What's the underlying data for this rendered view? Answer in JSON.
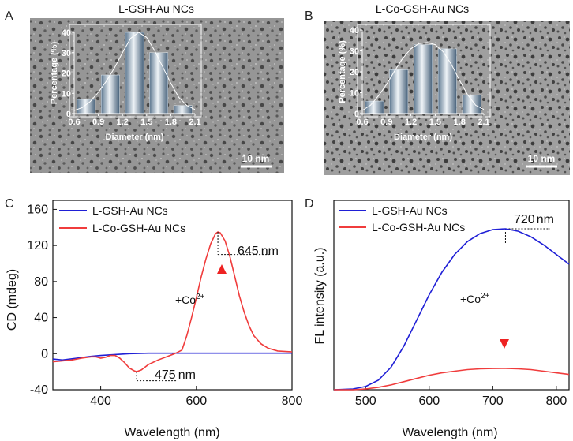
{
  "panels": {
    "A": {
      "letter": "A",
      "title": "L-GSH-Au NCs",
      "scale_bar_label": "10 nm",
      "histogram": {
        "type": "bar",
        "xlabel": "Diameter (nm)",
        "ylabel": "Percentage (%)",
        "xlim": [
          0.6,
          2.1
        ],
        "ylim": [
          0,
          40
        ],
        "xticks": [
          "0.6",
          "0.9",
          "1.2",
          "1.5",
          "1.8",
          "2.1"
        ],
        "yticks": [
          "0",
          "10",
          "20",
          "30",
          "40"
        ],
        "bin_centers": [
          0.75,
          1.05,
          1.35,
          1.65,
          1.95
        ],
        "values": [
          7,
          19,
          40,
          30,
          4
        ],
        "fit_curve": [
          [
            0.6,
            1.5
          ],
          [
            0.7,
            3
          ],
          [
            0.8,
            6
          ],
          [
            0.9,
            10.5
          ],
          [
            1.0,
            16
          ],
          [
            1.1,
            22.5
          ],
          [
            1.2,
            30
          ],
          [
            1.3,
            37
          ],
          [
            1.4,
            40
          ],
          [
            1.5,
            37.5
          ],
          [
            1.6,
            31
          ],
          [
            1.7,
            23
          ],
          [
            1.8,
            15
          ],
          [
            1.9,
            8
          ],
          [
            2.0,
            4
          ],
          [
            2.1,
            2
          ]
        ]
      }
    },
    "B": {
      "letter": "B",
      "title": "L-Co-GSH-Au NCs",
      "scale_bar_label": "10 nm",
      "histogram": {
        "type": "bar",
        "xlabel": "Diameter (nm)",
        "ylabel": "Percentage (%)",
        "xlim": [
          0.6,
          2.1
        ],
        "ylim": [
          0,
          40
        ],
        "xticks": [
          "0.6",
          "0.9",
          "1.2",
          "1.5",
          "1.8",
          "2.1"
        ],
        "yticks": [
          "0",
          "10",
          "20",
          "30",
          "40"
        ],
        "bin_centers": [
          0.75,
          1.05,
          1.35,
          1.65,
          1.95
        ],
        "values": [
          6,
          21,
          33,
          31,
          9
        ],
        "fit_curve": [
          [
            0.6,
            1.5
          ],
          [
            0.7,
            4
          ],
          [
            0.8,
            8.5
          ],
          [
            0.9,
            14
          ],
          [
            1.0,
            20.5
          ],
          [
            1.1,
            26.5
          ],
          [
            1.2,
            31
          ],
          [
            1.3,
            33.5
          ],
          [
            1.4,
            34
          ],
          [
            1.5,
            33
          ],
          [
            1.6,
            29.5
          ],
          [
            1.7,
            23.5
          ],
          [
            1.8,
            16
          ],
          [
            1.9,
            9
          ],
          [
            2.0,
            4
          ],
          [
            2.1,
            2
          ]
        ]
      }
    }
  },
  "chart_data": [
    {
      "panel": "C",
      "type": "line",
      "letter": "C",
      "xlabel": "Wavelength (nm)",
      "ylabel": "CD (mdeg)",
      "xlim": [
        300,
        800
      ],
      "ylim": [
        -40,
        170
      ],
      "xticks": [
        "400",
        "600",
        "800"
      ],
      "yticks": [
        "-40",
        "0",
        "40",
        "80",
        "120",
        "160"
      ],
      "series": [
        {
          "name": "L-GSH-Au NCs",
          "color": "#1f1fd6",
          "points": [
            [
              300,
              -6
            ],
            [
              320,
              -7
            ],
            [
              350,
              -5
            ],
            [
              380,
              -3
            ],
            [
              400,
              -2
            ],
            [
              430,
              -1
            ],
            [
              460,
              0
            ],
            [
              500,
              0.5
            ],
            [
              550,
              0.5
            ],
            [
              600,
              0.5
            ],
            [
              650,
              0.5
            ],
            [
              700,
              0.5
            ],
            [
              750,
              0.5
            ],
            [
              800,
              0.5
            ]
          ]
        },
        {
          "name": "L-Co-GSH-Au NCs",
          "color": "#f03c3c",
          "points": [
            [
              300,
              -9
            ],
            [
              320,
              -8
            ],
            [
              340,
              -7
            ],
            [
              360,
              -5
            ],
            [
              380,
              -3.5
            ],
            [
              390,
              -3.5
            ],
            [
              400,
              -5
            ],
            [
              410,
              -4
            ],
            [
              420,
              -2
            ],
            [
              430,
              -2
            ],
            [
              440,
              -5
            ],
            [
              450,
              -10
            ],
            [
              460,
              -16
            ],
            [
              470,
              -19
            ],
            [
              475,
              -20
            ],
            [
              485,
              -18
            ],
            [
              500,
              -12
            ],
            [
              520,
              -7
            ],
            [
              540,
              -3
            ],
            [
              555,
              0
            ],
            [
              570,
              4
            ],
            [
              580,
              20
            ],
            [
              590,
              40
            ],
            [
              600,
              62
            ],
            [
              610,
              85
            ],
            [
              620,
              105
            ],
            [
              630,
              122
            ],
            [
              640,
              133
            ],
            [
              645,
              135
            ],
            [
              650,
              134
            ],
            [
              660,
              125
            ],
            [
              670,
              108
            ],
            [
              680,
              86
            ],
            [
              690,
              64
            ],
            [
              700,
              46
            ],
            [
              710,
              31
            ],
            [
              720,
              20
            ],
            [
              735,
              11
            ],
            [
              750,
              6
            ],
            [
              770,
              3
            ],
            [
              800,
              2
            ]
          ]
        }
      ],
      "annotations": {
        "peak_label": "645",
        "dip_label": "475",
        "unit": "nm",
        "arrow_label": "+Co",
        "superscript": "2+"
      }
    },
    {
      "panel": "D",
      "type": "line",
      "letter": "D",
      "xlabel": "Wavelength (nm)",
      "ylabel": "FL intensity (a.u.)",
      "xlim": [
        450,
        820
      ],
      "ylim": [
        0,
        1
      ],
      "xticks": [
        "500",
        "600",
        "700",
        "800"
      ],
      "series": [
        {
          "name": "L-GSH-Au NCs",
          "color": "#1f1fd6",
          "points": [
            [
              450,
              0
            ],
            [
              480,
              0.005
            ],
            [
              500,
              0.02
            ],
            [
              520,
              0.06
            ],
            [
              540,
              0.14
            ],
            [
              560,
              0.27
            ],
            [
              580,
              0.43
            ],
            [
              600,
              0.59
            ],
            [
              620,
              0.73
            ],
            [
              640,
              0.84
            ],
            [
              660,
              0.92
            ],
            [
              680,
              0.97
            ],
            [
              700,
              0.995
            ],
            [
              720,
              1
            ],
            [
              740,
              0.985
            ],
            [
              760,
              0.95
            ],
            [
              780,
              0.9
            ],
            [
              800,
              0.84
            ],
            [
              820,
              0.78
            ]
          ]
        },
        {
          "name": "L-Co-GSH-Au NCs",
          "color": "#f03c3c",
          "points": [
            [
              450,
              0
            ],
            [
              480,
              0
            ],
            [
              500,
              0.005
            ],
            [
              520,
              0.015
            ],
            [
              540,
              0.03
            ],
            [
              560,
              0.05
            ],
            [
              580,
              0.07
            ],
            [
              600,
              0.09
            ],
            [
              620,
              0.105
            ],
            [
              640,
              0.115
            ],
            [
              660,
              0.125
            ],
            [
              680,
              0.13
            ],
            [
              700,
              0.132
            ],
            [
              720,
              0.133
            ],
            [
              740,
              0.13
            ],
            [
              760,
              0.125
            ],
            [
              780,
              0.115
            ],
            [
              800,
              0.105
            ],
            [
              820,
              0.095
            ]
          ]
        }
      ],
      "annotations": {
        "peak_label": "720",
        "unit": "nm",
        "arrow_label": "+Co",
        "superscript": "2+"
      }
    }
  ]
}
